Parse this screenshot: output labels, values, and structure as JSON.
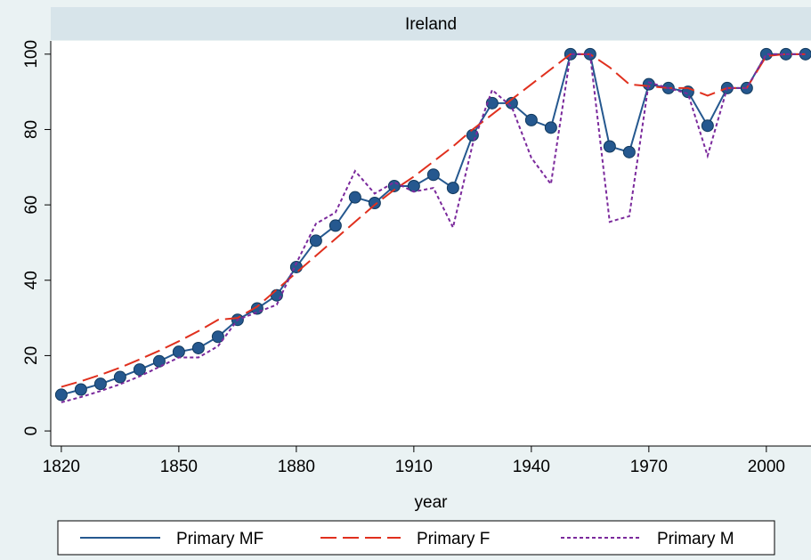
{
  "chart_data": {
    "type": "line",
    "title": "Ireland",
    "xlabel": "year",
    "x": [
      1820,
      1825,
      1830,
      1835,
      1840,
      1845,
      1850,
      1855,
      1860,
      1865,
      1870,
      1875,
      1880,
      1885,
      1890,
      1895,
      1900,
      1905,
      1910,
      1915,
      1920,
      1925,
      1930,
      1935,
      1940,
      1945,
      1950,
      1955,
      1960,
      1965,
      1970,
      1975,
      1980,
      1985,
      1990,
      1995,
      2000,
      2005,
      2010
    ],
    "series": [
      {
        "name": "Primary MF",
        "color": "#25588f",
        "dash": "none",
        "marker": "circle",
        "values": [
          9.6,
          11,
          12.5,
          14.3,
          16.3,
          18.5,
          21,
          22,
          25,
          29.5,
          32.5,
          36,
          43.5,
          50.5,
          54.5,
          62,
          60.5,
          65,
          65,
          68,
          64.5,
          78.5,
          87,
          87,
          82.5,
          80.5,
          100,
          100,
          75.5,
          74,
          92,
          91,
          90,
          81,
          91,
          91,
          100,
          100,
          100
        ]
      },
      {
        "name": "Primary F",
        "color": "#e0301e",
        "dash": "long",
        "marker": "none",
        "values": [
          11.7,
          13.2,
          14.9,
          16.8,
          19,
          21.3,
          23.8,
          26.5,
          29.5,
          30,
          33,
          37.5,
          42,
          46.5,
          51,
          55.5,
          60,
          64,
          67.5,
          71.5,
          75.5,
          80,
          84,
          88,
          92,
          96,
          100,
          100,
          96.5,
          92,
          91.5,
          91,
          91,
          89,
          91,
          91,
          99.5,
          100,
          100
        ]
      },
      {
        "name": "Primary M",
        "color": "#7b2a9c",
        "dash": "short",
        "marker": "none",
        "values": [
          7.6,
          9,
          10.6,
          12.4,
          14.5,
          17,
          19.5,
          19.5,
          22.5,
          29.5,
          31.5,
          33.5,
          44.5,
          55,
          58,
          69,
          63,
          66,
          63.5,
          64.5,
          54,
          76,
          90.5,
          86,
          72.5,
          65.5,
          100,
          100,
          55.5,
          57,
          92.5,
          91,
          89.5,
          73,
          91,
          91,
          100,
          100,
          100
        ]
      }
    ],
    "xlim": [
      1817.3,
      2011.4
    ],
    "xticks": [
      1820,
      1850,
      1880,
      1910,
      1940,
      1970,
      2000
    ],
    "ylim": [
      -4,
      103.5
    ],
    "yticks": [
      0,
      20,
      40,
      60,
      80,
      100
    ],
    "legend": "bottom"
  }
}
